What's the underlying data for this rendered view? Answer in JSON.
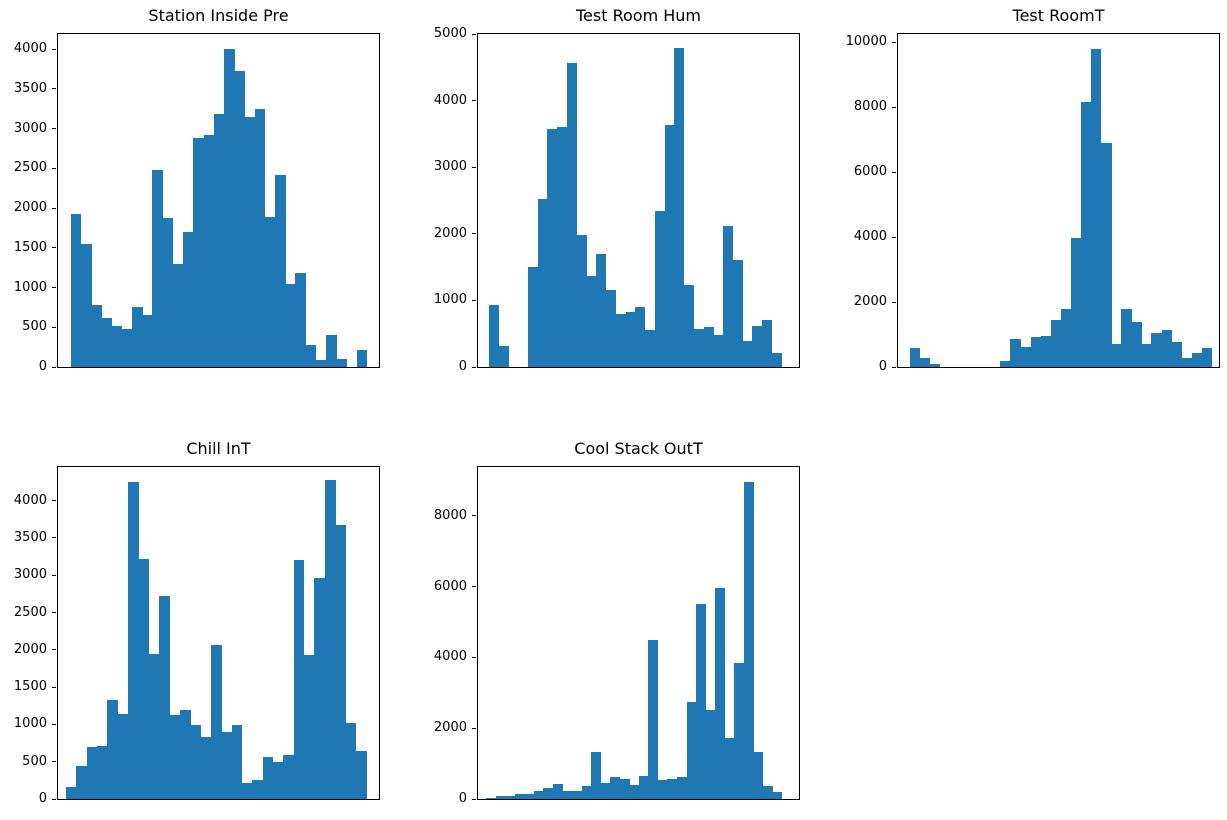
{
  "figure": {
    "background": "#ffffff",
    "bar_color": "#1f77b4",
    "spine_color": "#000000",
    "grid": false,
    "legend": null
  },
  "chart_data": [
    {
      "type": "bar",
      "subtype": "histogram",
      "title": "Station Inside Pre",
      "xlabel": "",
      "ylabel": "",
      "ylim": [
        0,
        4190
      ],
      "yticks": [
        0,
        500,
        1000,
        1500,
        2000,
        2500,
        3000,
        3500,
        4000
      ],
      "x_tick_labels": [],
      "bars_span_frac": [
        0.04,
        0.962
      ],
      "values": [
        1920,
        1550,
        780,
        620,
        510,
        480,
        760,
        650,
        2480,
        1870,
        1290,
        1700,
        2880,
        2920,
        3180,
        4000,
        3730,
        3150,
        3250,
        1890,
        2420,
        1050,
        1180,
        280,
        90,
        400,
        100,
        0,
        210
      ]
    },
    {
      "type": "bar",
      "subtype": "histogram",
      "title": "Test Room Hum",
      "xlabel": "",
      "ylabel": "",
      "ylim": [
        0,
        5000
      ],
      "yticks": [
        0,
        1000,
        2000,
        3000,
        4000,
        5000
      ],
      "x_tick_labels": [],
      "bars_span_frac": [
        0.034,
        0.946
      ],
      "values": [
        930,
        320,
        0,
        0,
        1500,
        2520,
        3570,
        3600,
        4570,
        1980,
        1370,
        1700,
        1160,
        800,
        830,
        900,
        560,
        2350,
        3640,
        4790,
        1230,
        570,
        600,
        480,
        2110,
        1610,
        390,
        620,
        700,
        210
      ]
    },
    {
      "type": "bar",
      "subtype": "histogram",
      "title": "Test RoomT",
      "xlabel": "",
      "ylabel": "",
      "ylim": [
        0,
        10250
      ],
      "yticks": [
        0,
        2000,
        4000,
        6000,
        8000,
        10000
      ],
      "x_tick_labels": [],
      "bars_span_frac": [
        0.036,
        0.978
      ],
      "values": [
        600,
        280,
        90,
        0,
        0,
        0,
        0,
        0,
        0,
        200,
        850,
        620,
        930,
        960,
        1450,
        1800,
        3980,
        8150,
        9800,
        6900,
        720,
        1780,
        1400,
        700,
        1060,
        1130,
        760,
        280,
        420,
        590
      ]
    },
    {
      "type": "bar",
      "subtype": "histogram",
      "title": "Chill InT",
      "xlabel": "",
      "ylabel": "",
      "ylim": [
        0,
        4450
      ],
      "yticks": [
        0,
        500,
        1000,
        1500,
        2000,
        2500,
        3000,
        3500,
        4000
      ],
      "x_tick_labels": [],
      "bars_span_frac": [
        0.025,
        0.96
      ],
      "values": [
        160,
        440,
        700,
        710,
        1330,
        1140,
        4250,
        3220,
        1950,
        2720,
        1130,
        1190,
        990,
        830,
        2070,
        900,
        990,
        220,
        250,
        560,
        490,
        590,
        3200,
        1930,
        2960,
        4270,
        3670,
        1020,
        640
      ]
    },
    {
      "type": "bar",
      "subtype": "histogram",
      "title": "Cool Stack OutT",
      "xlabel": "",
      "ylabel": "",
      "ylim": [
        0,
        9380
      ],
      "yticks": [
        0,
        2000,
        4000,
        6000,
        8000
      ],
      "x_tick_labels": [],
      "bars_span_frac": [
        0.025,
        0.947
      ],
      "values": [
        40,
        90,
        90,
        130,
        130,
        220,
        300,
        420,
        230,
        230,
        370,
        1320,
        460,
        630,
        570,
        400,
        640,
        4500,
        550,
        560,
        630,
        2730,
        5500,
        2520,
        5950,
        1730,
        3850,
        8970,
        1320,
        370,
        190
      ]
    }
  ]
}
